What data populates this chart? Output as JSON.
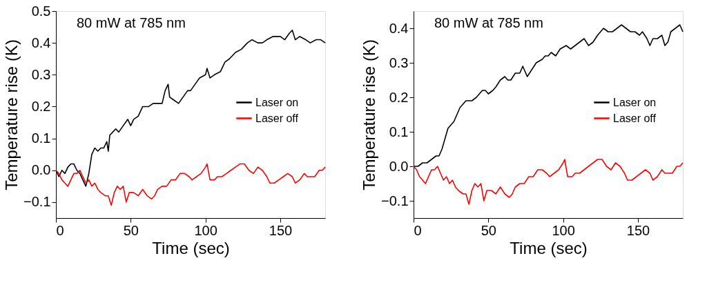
{
  "chart_data": [
    {
      "type": "line",
      "annotations": [
        "80 mW at 785 nm"
      ],
      "xlabel": "Time (sec)",
      "ylabel": "Temperature rise (K)",
      "xlim": [
        0,
        180
      ],
      "xticks": [
        0,
        50,
        100,
        150
      ],
      "ylim": [
        -0.15,
        0.5
      ],
      "yticks": [
        -0.1,
        {
          "value": 0,
          "label": "0.0"
        },
        0.1,
        0.2,
        0.3,
        0.4,
        0.5
      ],
      "grid": false,
      "legend": "right",
      "line_style": "solid",
      "marker": "none",
      "series": [
        {
          "name": "Laser on",
          "color": "#000000",
          "x": [
            0,
            2,
            4,
            6,
            8,
            10,
            12,
            14,
            16,
            18,
            20,
            21,
            22,
            24,
            26,
            28,
            30,
            32,
            34,
            35,
            36,
            38,
            40,
            42,
            45,
            48,
            50,
            52,
            55,
            58,
            62,
            65,
            68,
            71,
            73,
            75,
            76,
            79,
            82,
            85,
            88,
            90,
            93,
            96,
            100,
            101,
            103,
            106,
            110,
            113,
            116,
            120,
            124,
            128,
            131,
            135,
            138,
            141,
            145,
            150,
            153,
            156,
            158,
            160,
            163,
            167,
            170,
            174,
            177,
            180
          ],
          "values": [
            0.0,
            -0.02,
            0.0,
            -0.01,
            0.01,
            0.02,
            0.02,
            0.0,
            -0.01,
            -0.03,
            -0.05,
            -0.03,
            -0.01,
            0.05,
            0.07,
            0.06,
            0.07,
            0.07,
            0.09,
            0.06,
            0.11,
            0.12,
            0.13,
            0.12,
            0.14,
            0.16,
            0.14,
            0.16,
            0.17,
            0.2,
            0.2,
            0.21,
            0.21,
            0.21,
            0.25,
            0.27,
            0.23,
            0.22,
            0.21,
            0.23,
            0.25,
            0.25,
            0.27,
            0.29,
            0.3,
            0.32,
            0.29,
            0.3,
            0.31,
            0.34,
            0.35,
            0.37,
            0.38,
            0.4,
            0.41,
            0.4,
            0.4,
            0.41,
            0.42,
            0.42,
            0.41,
            0.43,
            0.44,
            0.41,
            0.42,
            0.41,
            0.4,
            0.41,
            0.41,
            0.4
          ]
        },
        {
          "name": "Laser off",
          "color": "#ff0000",
          "x": [
            0,
            2,
            4,
            6,
            8,
            10,
            12,
            14,
            16,
            18,
            20,
            22,
            24,
            26,
            28,
            30,
            33,
            35,
            37,
            39,
            41,
            43,
            45,
            47,
            49,
            52,
            55,
            58,
            61,
            64,
            66,
            68,
            71,
            74,
            77,
            80,
            83,
            86,
            89,
            91,
            94,
            97,
            100,
            101,
            103,
            106,
            108,
            111,
            114,
            117,
            120,
            123,
            126,
            129,
            132,
            135,
            138,
            141,
            143,
            146,
            149,
            152,
            155,
            158,
            160,
            163,
            166,
            168,
            170,
            173,
            176,
            178,
            180
          ],
          "values": [
            0.0,
            -0.01,
            -0.03,
            -0.04,
            -0.05,
            -0.03,
            -0.01,
            -0.01,
            0.0,
            -0.02,
            -0.04,
            -0.03,
            -0.05,
            -0.04,
            -0.06,
            -0.07,
            -0.08,
            -0.08,
            -0.11,
            -0.07,
            -0.05,
            -0.06,
            -0.05,
            -0.1,
            -0.07,
            -0.07,
            -0.08,
            -0.06,
            -0.08,
            -0.09,
            -0.08,
            -0.06,
            -0.05,
            -0.05,
            -0.03,
            -0.03,
            -0.01,
            -0.01,
            -0.02,
            -0.03,
            -0.02,
            -0.01,
            0.01,
            0.02,
            -0.03,
            -0.03,
            -0.02,
            -0.02,
            -0.01,
            0.0,
            0.01,
            0.02,
            0.02,
            0.0,
            -0.01,
            0.01,
            0.0,
            -0.02,
            -0.04,
            -0.04,
            -0.03,
            -0.02,
            -0.01,
            -0.02,
            -0.04,
            -0.03,
            -0.01,
            -0.02,
            -0.02,
            -0.02,
            0.0,
            0.0,
            0.01
          ]
        }
      ]
    },
    {
      "type": "line",
      "annotations": [
        "80 mW at 785 nm"
      ],
      "xlabel": "Time (sec)",
      "ylabel": "Temperature rise (K)",
      "xlim": [
        0,
        180
      ],
      "xticks": [
        0,
        50,
        100,
        150
      ],
      "ylim": [
        -0.15,
        0.45
      ],
      "yticks": [
        -0.1,
        {
          "value": 0,
          "label": "0.0"
        },
        0.1,
        0.2,
        0.3,
        0.4
      ],
      "grid": false,
      "legend": "right",
      "line_style": "solid",
      "marker": "none",
      "series": [
        {
          "name": "Laser on",
          "color": "#000000",
          "x": [
            0,
            3,
            6,
            9,
            12,
            15,
            17,
            19,
            21,
            23,
            25,
            27,
            29,
            31,
            33,
            35,
            37,
            39,
            42,
            44,
            46,
            48,
            50,
            53,
            55,
            58,
            61,
            63,
            65,
            68,
            71,
            73,
            76,
            79,
            82,
            86,
            88,
            90,
            92,
            95,
            98,
            102,
            105,
            108,
            111,
            114,
            117,
            120,
            123,
            127,
            130,
            133,
            136,
            139,
            142,
            145,
            148,
            151,
            153,
            156,
            158,
            160,
            163,
            166,
            168,
            170,
            172,
            175,
            178,
            180
          ],
          "values": [
            0.0,
            0.0,
            0.01,
            0.01,
            0.02,
            0.03,
            0.03,
            0.05,
            0.08,
            0.11,
            0.12,
            0.13,
            0.15,
            0.17,
            0.18,
            0.19,
            0.19,
            0.19,
            0.2,
            0.21,
            0.22,
            0.22,
            0.21,
            0.22,
            0.23,
            0.25,
            0.26,
            0.25,
            0.25,
            0.27,
            0.27,
            0.29,
            0.26,
            0.28,
            0.3,
            0.31,
            0.32,
            0.32,
            0.33,
            0.32,
            0.34,
            0.35,
            0.34,
            0.35,
            0.36,
            0.37,
            0.35,
            0.36,
            0.38,
            0.4,
            0.39,
            0.39,
            0.4,
            0.41,
            0.4,
            0.39,
            0.39,
            0.38,
            0.39,
            0.37,
            0.35,
            0.37,
            0.37,
            0.38,
            0.35,
            0.36,
            0.39,
            0.4,
            0.41,
            0.39
          ]
        },
        {
          "name": "Laser off",
          "color": "#ff0000",
          "x": [
            0,
            2,
            4,
            6,
            8,
            10,
            12,
            14,
            16,
            18,
            20,
            22,
            24,
            26,
            28,
            30,
            33,
            35,
            37,
            39,
            41,
            43,
            45,
            47,
            49,
            52,
            55,
            58,
            61,
            64,
            66,
            68,
            71,
            74,
            77,
            80,
            83,
            86,
            89,
            91,
            94,
            97,
            100,
            101,
            103,
            106,
            108,
            111,
            114,
            117,
            120,
            123,
            126,
            129,
            132,
            135,
            138,
            141,
            143,
            146,
            149,
            152,
            155,
            158,
            160,
            163,
            166,
            168,
            170,
            173,
            176,
            178,
            180
          ],
          "values": [
            0.0,
            -0.01,
            -0.03,
            -0.04,
            -0.05,
            -0.03,
            -0.01,
            -0.01,
            0.0,
            -0.02,
            -0.04,
            -0.03,
            -0.05,
            -0.04,
            -0.06,
            -0.07,
            -0.08,
            -0.08,
            -0.11,
            -0.07,
            -0.05,
            -0.06,
            -0.05,
            -0.1,
            -0.07,
            -0.07,
            -0.08,
            -0.06,
            -0.08,
            -0.09,
            -0.08,
            -0.06,
            -0.05,
            -0.05,
            -0.03,
            -0.03,
            -0.01,
            -0.01,
            -0.02,
            -0.03,
            -0.02,
            -0.01,
            0.01,
            0.02,
            -0.03,
            -0.03,
            -0.02,
            -0.02,
            -0.01,
            0.0,
            0.01,
            0.02,
            0.02,
            0.0,
            -0.01,
            0.01,
            0.0,
            -0.02,
            -0.04,
            -0.04,
            -0.03,
            -0.02,
            -0.01,
            -0.02,
            -0.04,
            -0.03,
            -0.01,
            -0.02,
            -0.02,
            -0.02,
            0.0,
            0.0,
            0.01
          ]
        }
      ]
    }
  ]
}
